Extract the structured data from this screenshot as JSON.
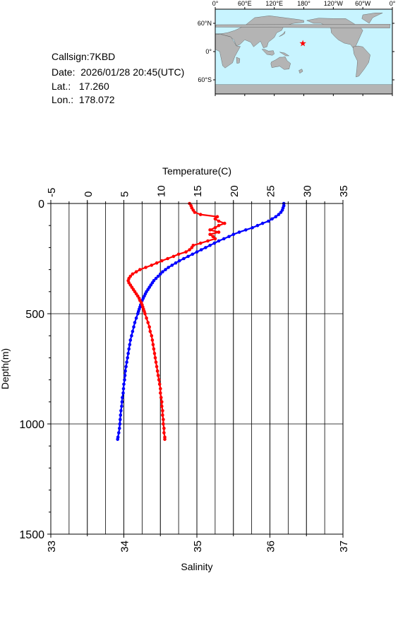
{
  "info": {
    "callsign": "Callsign:7KBD",
    "date": "Date:  2026/01/28 20:45(UTC)",
    "lat": "Lat.:   17.260",
    "lon": "Lon.:  178.072"
  },
  "map": {
    "lon_labels": [
      "0°",
      "60°E",
      "120°E",
      "180°",
      "120°W",
      "60°W",
      "0°"
    ],
    "lat_labels": [
      "60°N",
      "0°",
      "60°S"
    ],
    "ocean_color": "#c8f4ff",
    "land_color": "#b4b4b4",
    "station": {
      "lon": 178.072,
      "lat": 17.26,
      "marker": "star",
      "color": "#ff0000"
    }
  },
  "chart_data": {
    "type": "line",
    "top_axis": {
      "label": "Temperature(C)",
      "range": [
        -5,
        35
      ],
      "ticks": [
        "-5",
        "0",
        "5",
        "10",
        "15",
        "20",
        "25",
        "30",
        "35"
      ]
    },
    "bottom_axis": {
      "label": "Salinity",
      "range": [
        33,
        37
      ],
      "ticks": [
        "33",
        "34",
        "35",
        "36",
        "37"
      ]
    },
    "y_axis": {
      "label": "Depth(m)",
      "range": [
        0,
        1500
      ],
      "inverted": true,
      "ticks": [
        "0",
        "500",
        "1000",
        "1500"
      ]
    },
    "grid": true,
    "series": [
      {
        "color": "#0000ff",
        "axis": "temperature",
        "points": [
          [
            26.9,
            0
          ],
          [
            26.9,
            10
          ],
          [
            26.8,
            20
          ],
          [
            26.7,
            30
          ],
          [
            26.5,
            40
          ],
          [
            26.2,
            50
          ],
          [
            25.8,
            60
          ],
          [
            25.3,
            70
          ],
          [
            24.8,
            80
          ],
          [
            24.0,
            90
          ],
          [
            23.3,
            100
          ],
          [
            22.6,
            110
          ],
          [
            21.7,
            120
          ],
          [
            20.8,
            130
          ],
          [
            20.0,
            140
          ],
          [
            19.4,
            150
          ],
          [
            18.7,
            160
          ],
          [
            18.0,
            170
          ],
          [
            17.4,
            180
          ],
          [
            16.8,
            190
          ],
          [
            16.2,
            200
          ],
          [
            15.6,
            210
          ],
          [
            15.0,
            220
          ],
          [
            14.4,
            230
          ],
          [
            13.8,
            240
          ],
          [
            13.2,
            250
          ],
          [
            12.6,
            260
          ],
          [
            12.1,
            270
          ],
          [
            11.6,
            280
          ],
          [
            11.1,
            290
          ],
          [
            10.7,
            300
          ],
          [
            10.3,
            310
          ],
          [
            10.0,
            320
          ],
          [
            9.7,
            330
          ],
          [
            9.4,
            340
          ],
          [
            9.1,
            350
          ],
          [
            8.9,
            360
          ],
          [
            8.7,
            370
          ],
          [
            8.5,
            380
          ],
          [
            8.3,
            390
          ],
          [
            8.1,
            400
          ],
          [
            7.95,
            410
          ],
          [
            7.8,
            420
          ],
          [
            7.65,
            430
          ],
          [
            7.5,
            440
          ],
          [
            7.4,
            450
          ],
          [
            7.3,
            460
          ],
          [
            7.2,
            470
          ],
          [
            7.1,
            480
          ],
          [
            7.0,
            490
          ],
          [
            6.9,
            500
          ],
          [
            6.7,
            520
          ],
          [
            6.5,
            540
          ],
          [
            6.35,
            560
          ],
          [
            6.2,
            580
          ],
          [
            6.05,
            600
          ],
          [
            5.9,
            620
          ],
          [
            5.8,
            640
          ],
          [
            5.7,
            660
          ],
          [
            5.6,
            680
          ],
          [
            5.5,
            700
          ],
          [
            5.4,
            720
          ],
          [
            5.3,
            740
          ],
          [
            5.2,
            760
          ],
          [
            5.15,
            780
          ],
          [
            5.1,
            800
          ],
          [
            5.0,
            820
          ],
          [
            4.95,
            840
          ],
          [
            4.9,
            860
          ],
          [
            4.8,
            880
          ],
          [
            4.75,
            900
          ],
          [
            4.7,
            920
          ],
          [
            4.6,
            940
          ],
          [
            4.55,
            960
          ],
          [
            4.5,
            980
          ],
          [
            4.45,
            1000
          ],
          [
            4.4,
            1020
          ],
          [
            4.3,
            1040
          ],
          [
            4.2,
            1060
          ],
          [
            4.15,
            1070
          ]
        ]
      },
      {
        "color": "#ff0000",
        "axis": "salinity",
        "points": [
          [
            34.9,
            0
          ],
          [
            34.92,
            10
          ],
          [
            34.93,
            20
          ],
          [
            34.95,
            30
          ],
          [
            34.97,
            40
          ],
          [
            35.05,
            50
          ],
          [
            35.28,
            60
          ],
          [
            35.25,
            70
          ],
          [
            35.3,
            80
          ],
          [
            35.38,
            90
          ],
          [
            35.3,
            100
          ],
          [
            35.25,
            110
          ],
          [
            35.18,
            120
          ],
          [
            35.3,
            130
          ],
          [
            35.18,
            140
          ],
          [
            35.22,
            150
          ],
          [
            35.25,
            160
          ],
          [
            35.15,
            170
          ],
          [
            35.05,
            180
          ],
          [
            34.95,
            190
          ],
          [
            34.93,
            200
          ],
          [
            34.9,
            210
          ],
          [
            34.85,
            220
          ],
          [
            34.75,
            230
          ],
          [
            34.68,
            240
          ],
          [
            34.6,
            250
          ],
          [
            34.52,
            260
          ],
          [
            34.45,
            270
          ],
          [
            34.38,
            280
          ],
          [
            34.3,
            290
          ],
          [
            34.22,
            300
          ],
          [
            34.17,
            310
          ],
          [
            34.12,
            320
          ],
          [
            34.09,
            330
          ],
          [
            34.07,
            340
          ],
          [
            34.06,
            350
          ],
          [
            34.07,
            360
          ],
          [
            34.09,
            370
          ],
          [
            34.11,
            380
          ],
          [
            34.13,
            390
          ],
          [
            34.15,
            400
          ],
          [
            34.17,
            410
          ],
          [
            34.19,
            420
          ],
          [
            34.21,
            430
          ],
          [
            34.22,
            440
          ],
          [
            34.24,
            450
          ],
          [
            34.25,
            460
          ],
          [
            34.26,
            470
          ],
          [
            34.27,
            480
          ],
          [
            34.28,
            490
          ],
          [
            34.29,
            500
          ],
          [
            34.31,
            520
          ],
          [
            34.33,
            540
          ],
          [
            34.35,
            560
          ],
          [
            34.36,
            580
          ],
          [
            34.38,
            600
          ],
          [
            34.39,
            620
          ],
          [
            34.4,
            640
          ],
          [
            34.41,
            660
          ],
          [
            34.42,
            680
          ],
          [
            34.43,
            700
          ],
          [
            34.44,
            720
          ],
          [
            34.45,
            740
          ],
          [
            34.46,
            760
          ],
          [
            34.47,
            780
          ],
          [
            34.48,
            800
          ],
          [
            34.49,
            820
          ],
          [
            34.5,
            840
          ],
          [
            34.5,
            860
          ],
          [
            34.51,
            880
          ],
          [
            34.52,
            900
          ],
          [
            34.52,
            920
          ],
          [
            34.53,
            940
          ],
          [
            34.53,
            960
          ],
          [
            34.54,
            980
          ],
          [
            34.54,
            1000
          ],
          [
            34.55,
            1020
          ],
          [
            34.55,
            1040
          ],
          [
            34.56,
            1060
          ],
          [
            34.56,
            1070
          ]
        ]
      }
    ]
  }
}
